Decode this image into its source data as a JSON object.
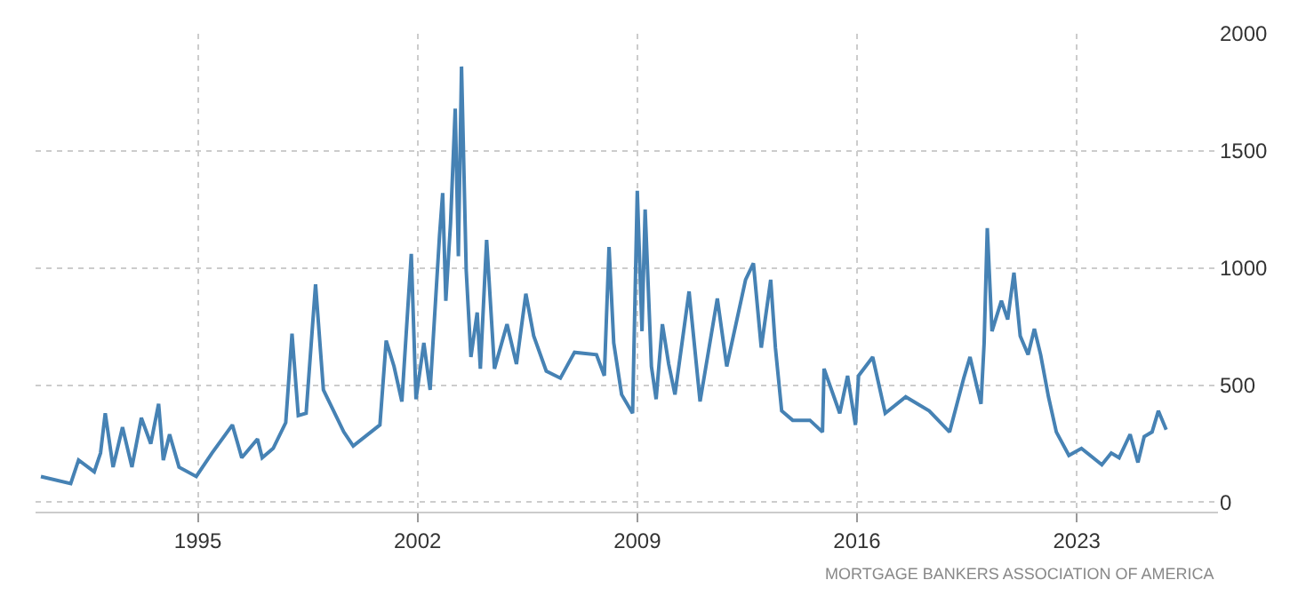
{
  "chart_data": {
    "type": "line",
    "x": [
      1990.0,
      1990.95,
      1991.2,
      1991.7,
      1991.9,
      1992.05,
      1992.3,
      1992.6,
      1992.9,
      1993.2,
      1993.5,
      1993.75,
      1993.9,
      1994.1,
      1994.4,
      1994.95,
      1995.45,
      1996.1,
      1996.4,
      1996.9,
      1997.05,
      1997.4,
      1997.8,
      1998.0,
      1998.2,
      1998.45,
      1998.75,
      1999.0,
      1999.65,
      1999.95,
      2000.8,
      2001.0,
      2001.25,
      2001.5,
      2001.8,
      2001.95,
      2002.2,
      2002.4,
      2002.7,
      2002.8,
      2002.9,
      2003.05,
      2003.2,
      2003.3,
      2003.4,
      2003.55,
      2003.7,
      2003.9,
      2004.0,
      2004.2,
      2004.45,
      2004.85,
      2005.15,
      2005.45,
      2005.7,
      2006.1,
      2006.55,
      2007.0,
      2007.7,
      2007.95,
      2008.1,
      2008.25,
      2008.5,
      2008.85,
      2009.0,
      2009.15,
      2009.25,
      2009.45,
      2009.6,
      2009.8,
      2010.0,
      2010.2,
      2010.65,
      2011.0,
      2011.55,
      2011.85,
      2012.45,
      2012.7,
      2012.95,
      2013.25,
      2013.4,
      2013.6,
      2013.95,
      2014.5,
      2014.9,
      2014.95,
      2015.45,
      2015.7,
      2015.95,
      2016.05,
      2016.5,
      2016.9,
      2017.55,
      2018.3,
      2018.95,
      2019.4,
      2019.6,
      2019.95,
      2020.05,
      2020.15,
      2020.3,
      2020.6,
      2020.8,
      2021.0,
      2021.2,
      2021.45,
      2021.65,
      2021.85,
      2022.1,
      2022.35,
      2022.75,
      2023.15,
      2023.8,
      2024.1,
      2024.35,
      2024.7,
      2024.95,
      2025.15,
      2025.4,
      2025.6,
      2025.85
    ],
    "series": [
      {
        "color": "#4682b4",
        "values": [
          110,
          80,
          180,
          130,
          210,
          380,
          150,
          320,
          150,
          360,
          250,
          420,
          180,
          290,
          150,
          110,
          210,
          330,
          190,
          270,
          190,
          230,
          340,
          720,
          370,
          380,
          930,
          480,
          300,
          240,
          330,
          690,
          580,
          430,
          1060,
          440,
          680,
          480,
          1140,
          1320,
          860,
          1190,
          1680,
          1050,
          1860,
          990,
          620,
          810,
          570,
          1120,
          570,
          760,
          590,
          890,
          710,
          560,
          530,
          640,
          630,
          540,
          1090,
          680,
          460,
          380,
          1330,
          730,
          1250,
          580,
          440,
          760,
          590,
          460,
          900,
          430,
          870,
          580,
          950,
          1020,
          660,
          950,
          660,
          390,
          350,
          350,
          300,
          570,
          380,
          540,
          330,
          540,
          620,
          380,
          450,
          390,
          300,
          530,
          620,
          420,
          680,
          1170,
          730,
          860,
          780,
          980,
          710,
          630,
          740,
          630,
          450,
          300,
          200,
          230,
          160,
          210,
          190,
          290,
          170,
          280,
          300,
          390,
          310
        ]
      }
    ],
    "xlim": [
      1989.83,
      2027.5
    ],
    "xticks": [
      1995,
      2002,
      2009,
      2016,
      2023
    ],
    "ylim": [
      -40,
      2000
    ],
    "yticks": [
      0,
      500,
      1000,
      1500,
      2000
    ],
    "grid": true,
    "marker": "none",
    "line_style": "solid",
    "annotations": [
      "MORTGAGE BANKERS ASSOCIATION OF AMERICA"
    ]
  }
}
